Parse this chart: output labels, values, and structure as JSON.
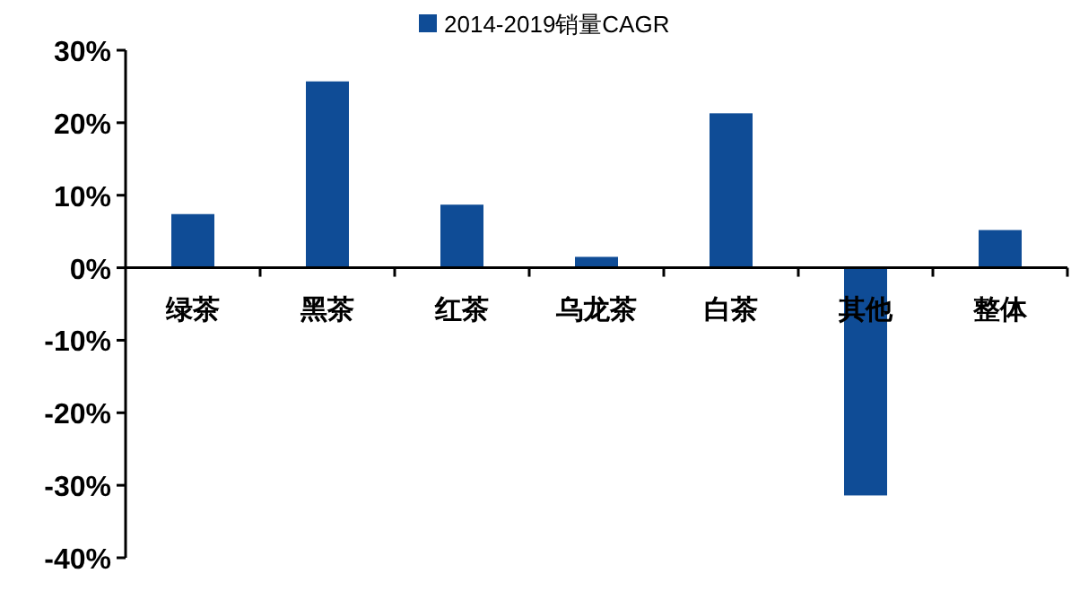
{
  "chart_data": {
    "type": "bar",
    "categories": [
      "绿茶",
      "黑茶",
      "红茶",
      "乌龙茶",
      "白茶",
      "其他",
      "整体"
    ],
    "series": [
      {
        "name": "2014-2019销量CAGR",
        "color": "#0f4c96",
        "values": [
          7.4,
          25.7,
          8.7,
          1.5,
          21.3,
          -31.4,
          5.2
        ]
      }
    ],
    "ylim": [
      -40,
      30
    ],
    "yticks": [
      {
        "value": -40,
        "label": "-40%"
      },
      {
        "value": -30,
        "label": "-30%"
      },
      {
        "value": -20,
        "label": "-20%"
      },
      {
        "value": -10,
        "label": "-10%"
      },
      {
        "value": 0,
        "label": "0%"
      },
      {
        "value": 10,
        "label": "10%"
      },
      {
        "value": 20,
        "label": "20%"
      },
      {
        "value": 30,
        "label": "30%"
      }
    ],
    "grid": false,
    "legend": "top"
  }
}
